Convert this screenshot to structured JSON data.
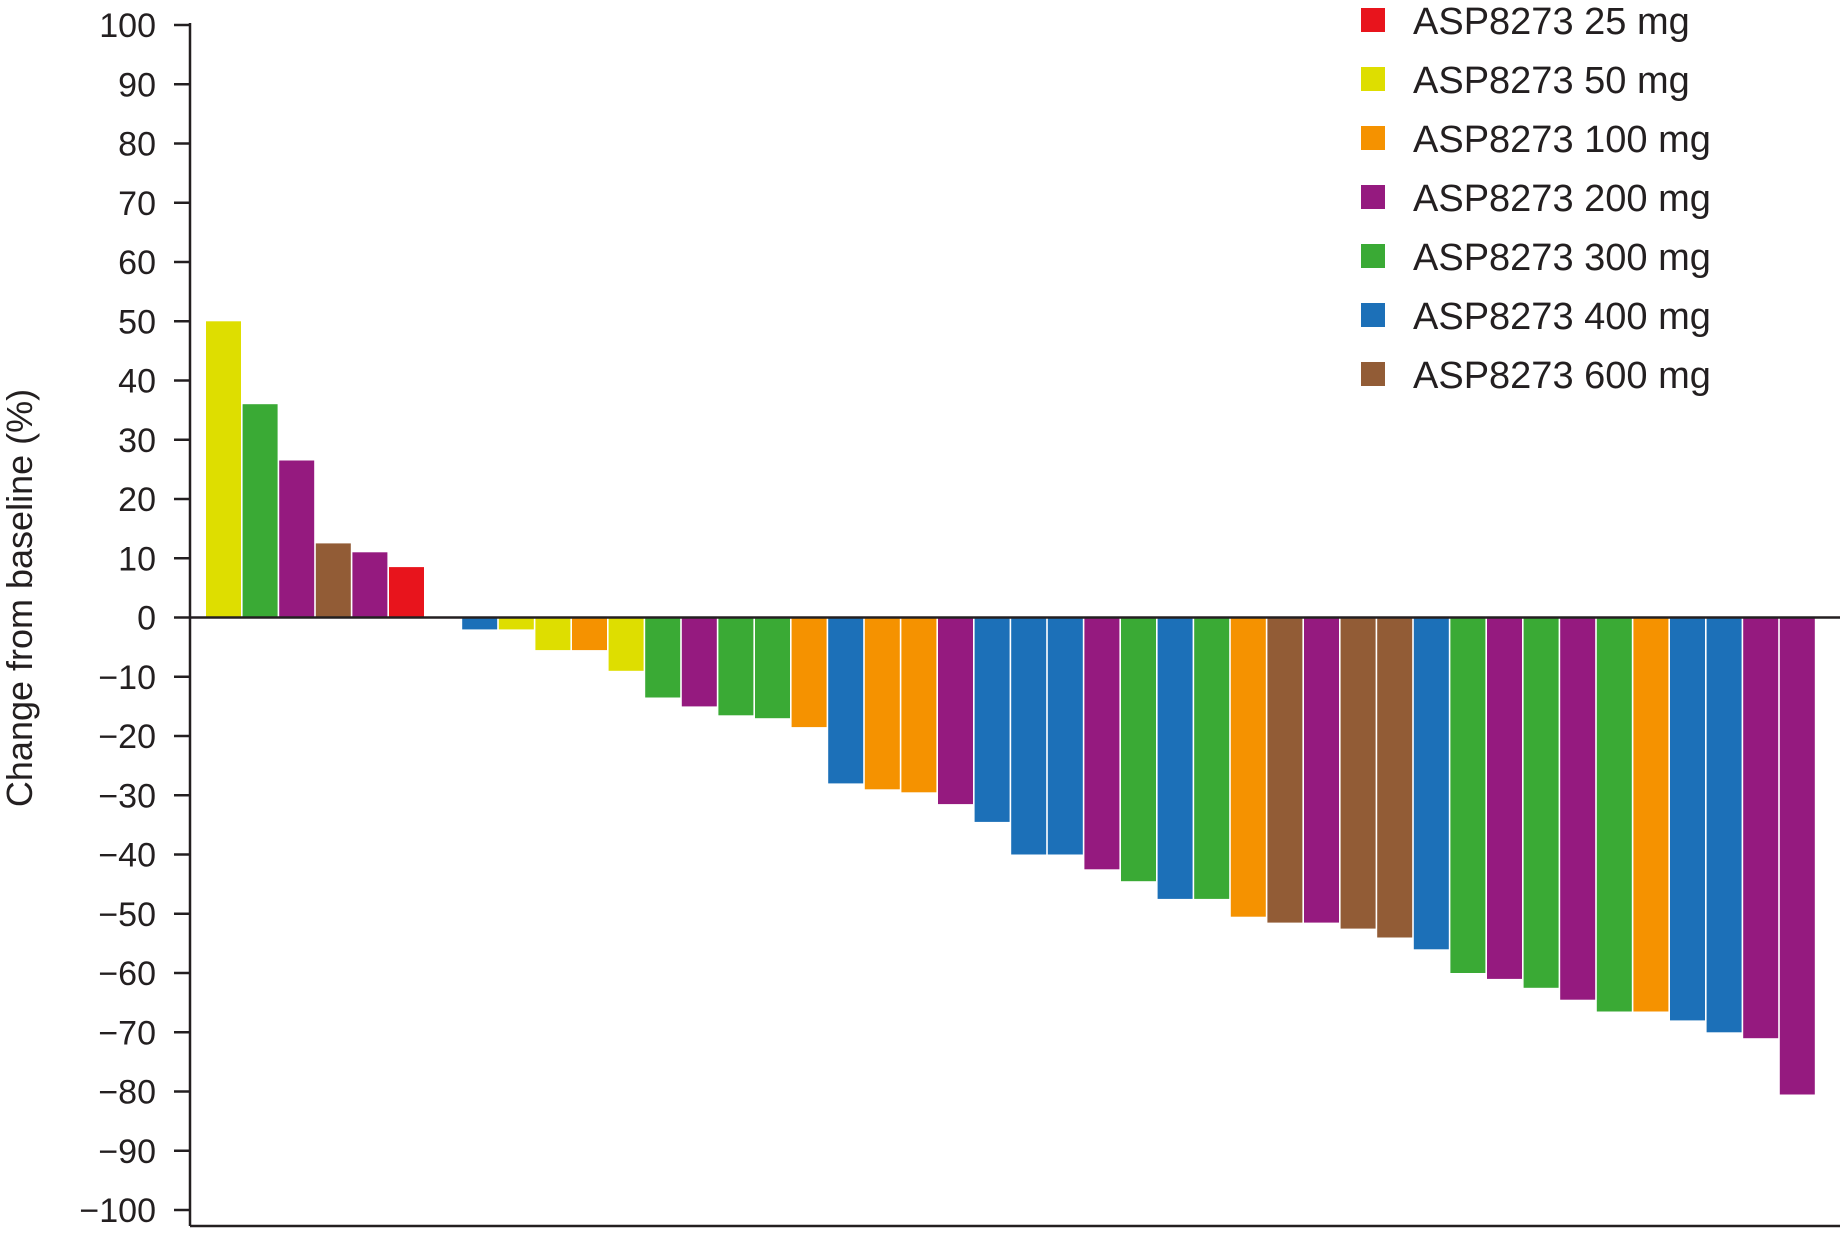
{
  "chart_data": {
    "type": "bar",
    "title": "",
    "xlabel": "",
    "ylabel": "Change from baseline (%)",
    "ylim": [
      -100,
      100
    ],
    "yticks": [
      100,
      90,
      80,
      70,
      60,
      50,
      40,
      30,
      20,
      10,
      0,
      -10,
      -20,
      -30,
      -40,
      -50,
      -60,
      -70,
      -80,
      -90,
      -100
    ],
    "ytick_labels": [
      "100",
      "90",
      "80",
      "70",
      "60",
      "50",
      "40",
      "30",
      "20",
      "10",
      "0",
      "−10",
      "−20",
      "−30",
      "−40",
      "−50",
      "−60",
      "−70",
      "−80",
      "−90",
      "−100"
    ],
    "grid": false,
    "legend_position": "top-right",
    "legend": [
      {
        "label": "ASP8273 25 mg",
        "color": "#e8141c"
      },
      {
        "label": "ASP8273 50 mg",
        "color": "#dede00"
      },
      {
        "label": "ASP8273 100 mg",
        "color": "#f59200"
      },
      {
        "label": "ASP8273 200 mg",
        "color": "#951a7f"
      },
      {
        "label": "ASP8273 300 mg",
        "color": "#3aaa35"
      },
      {
        "label": "ASP8273 400 mg",
        "color": "#1c70b8"
      },
      {
        "label": "ASP8273 600 mg",
        "color": "#925c36"
      }
    ],
    "bars": [
      {
        "value": 50,
        "dose": "ASP8273 50 mg"
      },
      {
        "value": 36,
        "dose": "ASP8273 300 mg"
      },
      {
        "value": 26.5,
        "dose": "ASP8273 200 mg"
      },
      {
        "value": 12.5,
        "dose": "ASP8273 600 mg"
      },
      {
        "value": 11,
        "dose": "ASP8273 200 mg"
      },
      {
        "value": 8.5,
        "dose": "ASP8273 25 mg"
      },
      {
        "value": 0,
        "dose": ""
      },
      {
        "value": -2,
        "dose": "ASP8273 400 mg"
      },
      {
        "value": -2,
        "dose": "ASP8273 50 mg"
      },
      {
        "value": -5.5,
        "dose": "ASP8273 50 mg"
      },
      {
        "value": -5.5,
        "dose": "ASP8273 100 mg"
      },
      {
        "value": -9,
        "dose": "ASP8273 50 mg"
      },
      {
        "value": -13.5,
        "dose": "ASP8273 300 mg"
      },
      {
        "value": -15,
        "dose": "ASP8273 200 mg"
      },
      {
        "value": -16.5,
        "dose": "ASP8273 300 mg"
      },
      {
        "value": -17,
        "dose": "ASP8273 300 mg"
      },
      {
        "value": -18.5,
        "dose": "ASP8273 100 mg"
      },
      {
        "value": -28,
        "dose": "ASP8273 400 mg"
      },
      {
        "value": -29,
        "dose": "ASP8273 100 mg"
      },
      {
        "value": -29.5,
        "dose": "ASP8273 100 mg"
      },
      {
        "value": -31.5,
        "dose": "ASP8273 200 mg"
      },
      {
        "value": -34.5,
        "dose": "ASP8273 400 mg"
      },
      {
        "value": -40,
        "dose": "ASP8273 400 mg"
      },
      {
        "value": -40,
        "dose": "ASP8273 400 mg"
      },
      {
        "value": -42.5,
        "dose": "ASP8273 200 mg"
      },
      {
        "value": -44.5,
        "dose": "ASP8273 300 mg"
      },
      {
        "value": -47.5,
        "dose": "ASP8273 400 mg"
      },
      {
        "value": -47.5,
        "dose": "ASP8273 300 mg"
      },
      {
        "value": -50.5,
        "dose": "ASP8273 100 mg"
      },
      {
        "value": -51.5,
        "dose": "ASP8273 600 mg"
      },
      {
        "value": -51.5,
        "dose": "ASP8273 200 mg"
      },
      {
        "value": -52.5,
        "dose": "ASP8273 600 mg"
      },
      {
        "value": -54,
        "dose": "ASP8273 600 mg"
      },
      {
        "value": -56,
        "dose": "ASP8273 400 mg"
      },
      {
        "value": -60,
        "dose": "ASP8273 300 mg"
      },
      {
        "value": -61,
        "dose": "ASP8273 200 mg"
      },
      {
        "value": -62.5,
        "dose": "ASP8273 300 mg"
      },
      {
        "value": -64.5,
        "dose": "ASP8273 200 mg"
      },
      {
        "value": -66.5,
        "dose": "ASP8273 300 mg"
      },
      {
        "value": -66.5,
        "dose": "ASP8273 100 mg"
      },
      {
        "value": -68,
        "dose": "ASP8273 400 mg"
      },
      {
        "value": -70,
        "dose": "ASP8273 400 mg"
      },
      {
        "value": -71,
        "dose": "ASP8273 200 mg"
      },
      {
        "value": -80.5,
        "dose": "ASP8273 200 mg"
      }
    ]
  }
}
